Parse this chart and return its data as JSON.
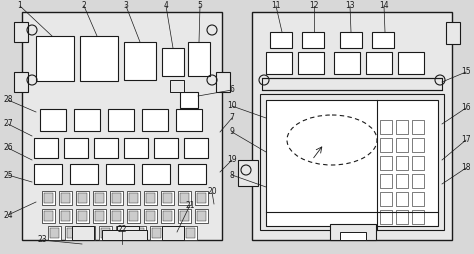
{
  "bg_color": "#d8d8d8",
  "line_color": "#1a1a1a",
  "white": "#ffffff",
  "light_gray": "#e8e8e8",
  "figsize": [
    4.74,
    2.54
  ],
  "dpi": 100
}
